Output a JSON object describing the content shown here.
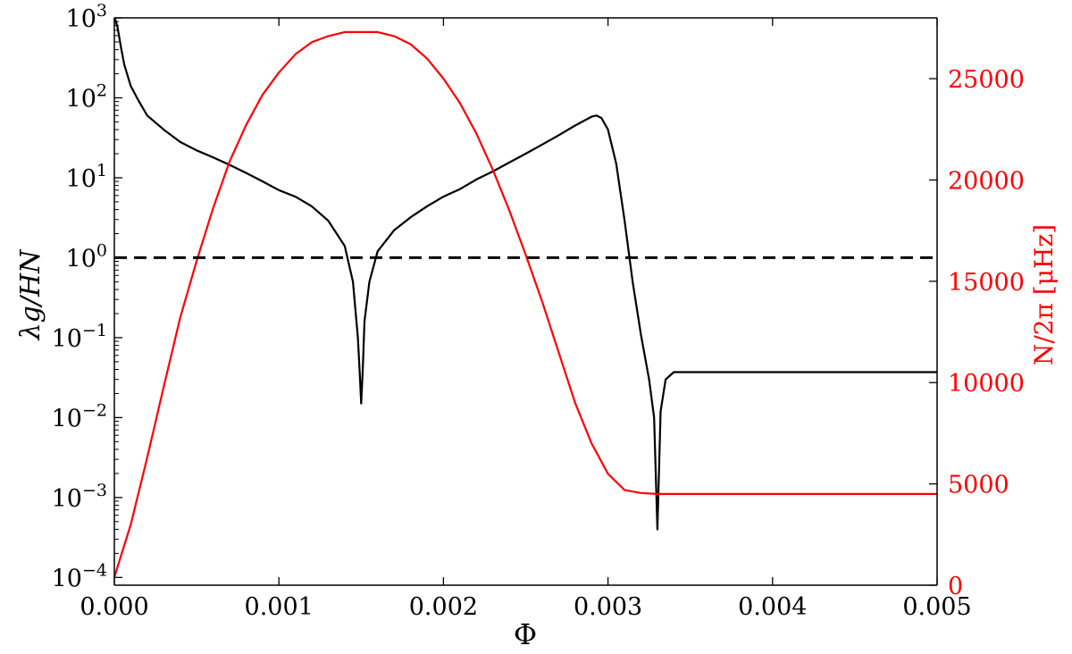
{
  "chart_data": {
    "type": "line",
    "dual_axis": true,
    "grid": false,
    "legend": "none",
    "xlabel": "Φ",
    "ylabel_left": "λg/HN",
    "ylabel_right": "N/2π [μHz]",
    "x_range": [
      0,
      0.005
    ],
    "y_left_range": [
      8e-05,
      1000
    ],
    "y_left_scale": "log",
    "y_right_range": [
      0,
      28000
    ],
    "x_ticks": [
      {
        "value": 0.0,
        "label": "0.000"
      },
      {
        "value": 0.001,
        "label": "0.001"
      },
      {
        "value": 0.002,
        "label": "0.002"
      },
      {
        "value": 0.003,
        "label": "0.003"
      },
      {
        "value": 0.004,
        "label": "0.004"
      },
      {
        "value": 0.005,
        "label": "0.005"
      }
    ],
    "y_left_ticks": [
      {
        "value": 0.0001,
        "base": "10",
        "exp": "−4"
      },
      {
        "value": 0.001,
        "base": "10",
        "exp": "−3"
      },
      {
        "value": 0.01,
        "base": "10",
        "exp": "−2"
      },
      {
        "value": 0.1,
        "base": "10",
        "exp": "−1"
      },
      {
        "value": 1,
        "base": "10",
        "exp": "0"
      },
      {
        "value": 10,
        "base": "10",
        "exp": "1"
      },
      {
        "value": 100,
        "base": "10",
        "exp": "2"
      },
      {
        "value": 1000,
        "base": "10",
        "exp": "3"
      }
    ],
    "y_right_ticks": [
      {
        "value": 0,
        "label": "0"
      },
      {
        "value": 5000,
        "label": "5000"
      },
      {
        "value": 10000,
        "label": "10000"
      },
      {
        "value": 15000,
        "label": "15000"
      },
      {
        "value": 20000,
        "label": "20000"
      },
      {
        "value": 25000,
        "label": "25000"
      }
    ],
    "colors": {
      "left_series": "#000000",
      "right_series": "#ff0000",
      "reference": "#000000",
      "right_axis": "#ff0000"
    },
    "reference_line": {
      "axis": "left",
      "y": 1,
      "style": "dashed"
    },
    "series": [
      {
        "axis": "left",
        "scale": "log",
        "x": [
          0.0,
          1e-05,
          2e-05,
          4e-05,
          6e-05,
          0.0001,
          0.00015,
          0.0002,
          0.0003,
          0.0004,
          0.0005,
          0.0006,
          0.0007,
          0.0008,
          0.0009,
          0.001,
          0.0011,
          0.0012,
          0.0013,
          0.0014,
          0.00145,
          0.00148,
          0.00149,
          0.0015,
          0.00151,
          0.00152,
          0.00155,
          0.0016,
          0.0017,
          0.0018,
          0.0019,
          0.002,
          0.0021,
          0.0022,
          0.0023,
          0.0024,
          0.0025,
          0.0026,
          0.0027,
          0.0028,
          0.0029,
          0.00293,
          0.00296,
          0.003,
          0.00305,
          0.0031,
          0.00315,
          0.0032,
          0.00325,
          0.00328,
          0.0033,
          0.00332,
          0.00335,
          0.0034,
          0.0035,
          0.004,
          0.0045,
          0.005
        ],
        "y": [
          1000,
          900,
          750,
          430,
          260,
          140,
          90,
          60,
          40,
          28,
          22,
          18,
          14.5,
          11.5,
          9,
          7,
          5.8,
          4.4,
          2.9,
          1.4,
          0.5,
          0.1,
          0.04,
          0.015,
          0.04,
          0.16,
          0.5,
          1.2,
          2.2,
          3.2,
          4.4,
          5.8,
          7.2,
          9.5,
          12,
          15.5,
          20,
          26,
          34,
          45,
          58,
          60,
          56,
          40,
          15,
          3,
          0.5,
          0.11,
          0.03,
          0.01,
          0.0004,
          0.012,
          0.03,
          0.037,
          0.037,
          0.037,
          0.037,
          0.037
        ]
      },
      {
        "axis": "right",
        "scale": "linear",
        "x": [
          0.0,
          0.0001,
          0.0002,
          0.0003,
          0.0004,
          0.0005,
          0.0006,
          0.0007,
          0.0008,
          0.0009,
          0.001,
          0.0011,
          0.0012,
          0.0013,
          0.0014,
          0.0015,
          0.0016,
          0.0017,
          0.0018,
          0.0019,
          0.002,
          0.0021,
          0.0022,
          0.0023,
          0.0024,
          0.0025,
          0.0026,
          0.0027,
          0.0028,
          0.0029,
          0.003,
          0.0031,
          0.0032,
          0.0033,
          0.0034,
          0.0035,
          0.004,
          0.0045,
          0.005
        ],
        "y": [
          400,
          3000,
          6300,
          9800,
          13200,
          16000,
          18600,
          20900,
          22700,
          24200,
          25300,
          26200,
          26800,
          27100,
          27300,
          27300,
          27300,
          27100,
          26700,
          26000,
          25000,
          23800,
          22300,
          20500,
          18500,
          16300,
          14000,
          11500,
          9000,
          7000,
          5500,
          4700,
          4550,
          4500,
          4500,
          4500,
          4500,
          4500,
          4500
        ]
      }
    ]
  }
}
